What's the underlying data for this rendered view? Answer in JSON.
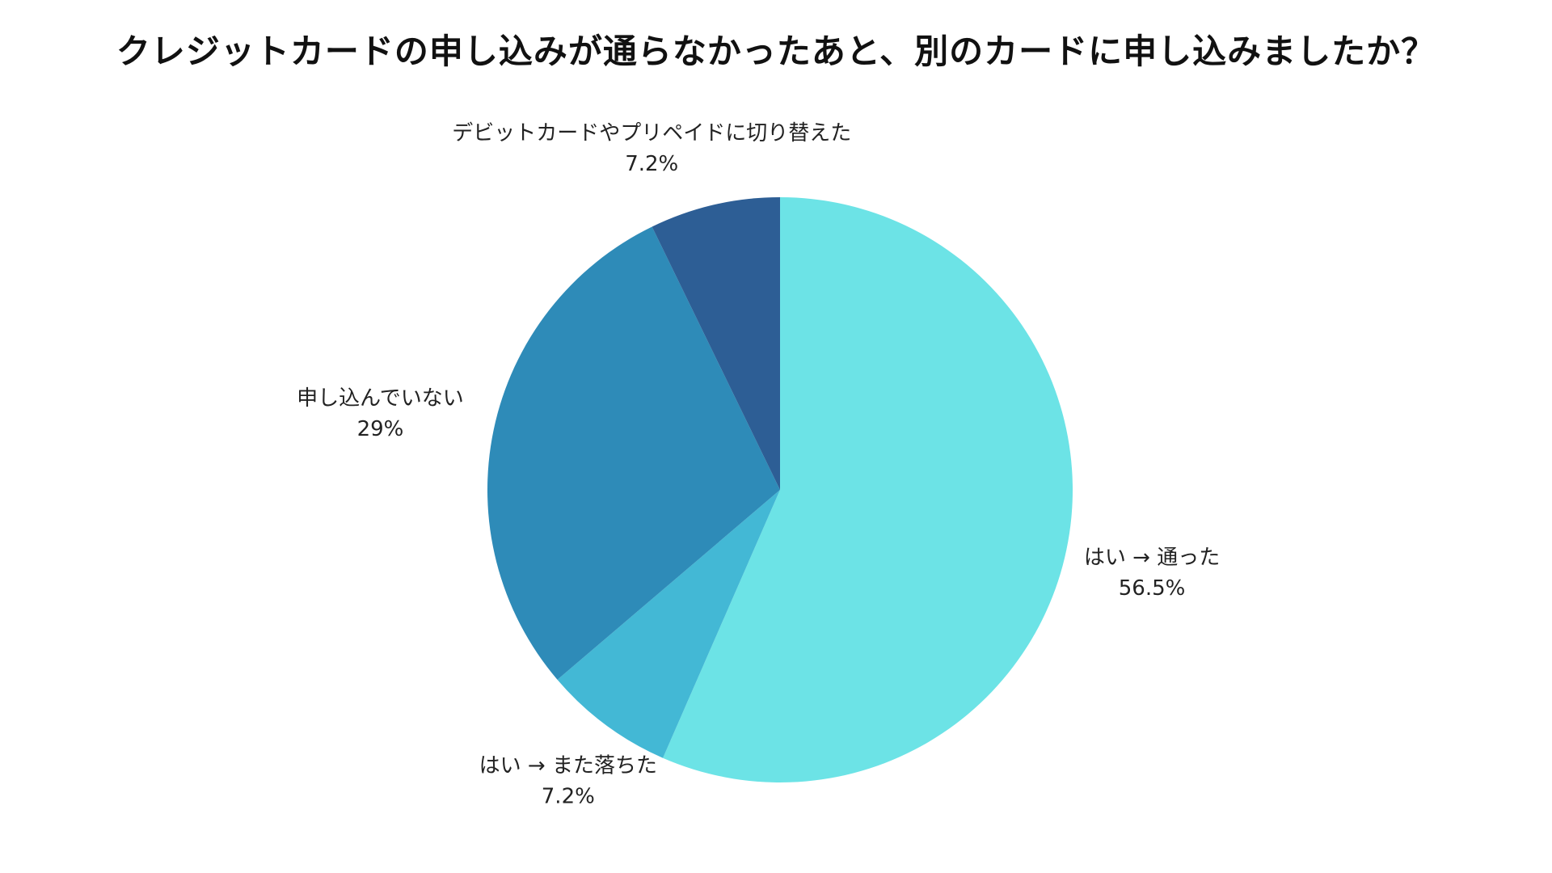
{
  "chart_data": {
    "type": "pie",
    "title": "クレジットカードの申し込みが通らなかったあと、別のカードに申し込みましたか？",
    "start_angle_deg": 0,
    "direction": "clockwise",
    "slices": [
      {
        "label": "はい → 通った",
        "value": 56.5,
        "value_label": "56.5%",
        "color": "#6ce3e6"
      },
      {
        "label": "はい → また落ちた",
        "value": 7.2,
        "value_label": "7.2%",
        "color": "#43b8d5"
      },
      {
        "label": "申し込んでいない",
        "value": 29,
        "value_label": "29%",
        "color": "#2e8bb8"
      },
      {
        "label": "デビットカードやプリペイドに切り替えた",
        "value": 7.2,
        "value_label": "7.2%",
        "color": "#2d5e95"
      }
    ]
  }
}
